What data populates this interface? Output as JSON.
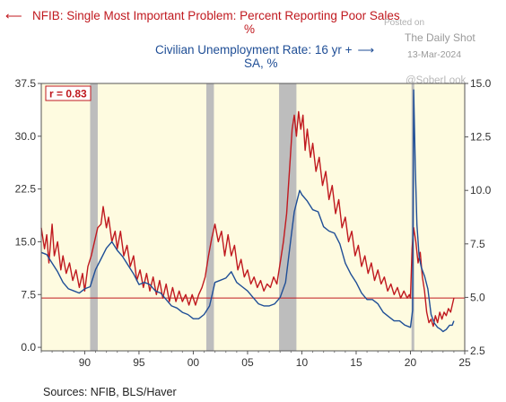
{
  "header": {
    "red_title": "NFIB: Single Most Important Problem: Percent Reporting Poor Sales",
    "red_unit": "%",
    "red_arrow": "⟵",
    "blue_title": "Civilian Unemployment Rate: 16 yr +",
    "blue_unit": "SA, %",
    "blue_arrow": "⟶"
  },
  "watermark": {
    "posted": "Posted on",
    "site": "The Daily Shot",
    "date": "13-Mar-2024",
    "handle": "@SoberLook"
  },
  "annotation": {
    "correlation": "r = 0.83"
  },
  "footer": {
    "sources": "Sources:  NFIB, BLS/Haver"
  },
  "chart_data": {
    "type": "line",
    "x_axis": {
      "range": [
        1986.0,
        2025.0
      ],
      "ticks": [
        1990,
        1995,
        2000,
        2005,
        2010,
        2015,
        2020,
        2025
      ],
      "tick_labels": [
        "90",
        "95",
        "00",
        "05",
        "10",
        "15",
        "20",
        "25"
      ]
    },
    "y_left": {
      "range": [
        -0.5,
        37.5
      ],
      "ticks": [
        0.0,
        7.5,
        15.0,
        22.5,
        30.0,
        37.5
      ],
      "tick_labels": [
        "0.0",
        "7.5",
        "15.0",
        "22.5",
        "30.0",
        "37.5"
      ]
    },
    "y_right": {
      "range": [
        2.5,
        15.0
      ],
      "ticks": [
        2.5,
        5.0,
        7.5,
        10.0,
        12.5,
        15.0
      ],
      "tick_labels": [
        "2.5",
        "5.0",
        "7.5",
        "10.0",
        "12.5",
        "15.0"
      ]
    },
    "reference_line": {
      "axis": "left",
      "value": 7.0
    },
    "recessions": [
      [
        1990.5,
        1991.2
      ],
      [
        2001.2,
        2001.9
      ],
      [
        2007.9,
        2009.5
      ],
      [
        2020.1,
        2020.35
      ]
    ],
    "colors": {
      "red": "#c0191f",
      "blue": "#1f4e96",
      "plot_bg": "#fefbe0",
      "recession": "#bdbdbd",
      "ref_line": "#c0191f"
    },
    "series": [
      {
        "name": "NFIB: Single Most Important Problem: Percent Reporting Poor Sales",
        "axis": "left",
        "color": "#c0191f",
        "points": [
          [
            1986.0,
            17.0
          ],
          [
            1986.3,
            14.0
          ],
          [
            1986.5,
            16.0
          ],
          [
            1986.7,
            12.0
          ],
          [
            1987.0,
            17.5
          ],
          [
            1987.2,
            13.0
          ],
          [
            1987.5,
            15.0
          ],
          [
            1987.8,
            11.0
          ],
          [
            1988.0,
            13.0
          ],
          [
            1988.3,
            10.5
          ],
          [
            1988.6,
            12.0
          ],
          [
            1988.9,
            9.5
          ],
          [
            1989.2,
            11.0
          ],
          [
            1989.5,
            8.5
          ],
          [
            1989.8,
            10.5
          ],
          [
            1990.0,
            8.0
          ],
          [
            1990.3,
            11.5
          ],
          [
            1990.6,
            13.0
          ],
          [
            1990.9,
            15.0
          ],
          [
            1991.2,
            17.0
          ],
          [
            1991.5,
            17.5
          ],
          [
            1991.7,
            20.0
          ],
          [
            1992.0,
            17.0
          ],
          [
            1992.2,
            18.5
          ],
          [
            1992.5,
            15.0
          ],
          [
            1992.8,
            16.5
          ],
          [
            1993.0,
            14.0
          ],
          [
            1993.3,
            16.5
          ],
          [
            1993.6,
            13.0
          ],
          [
            1993.9,
            14.5
          ],
          [
            1994.2,
            11.5
          ],
          [
            1994.5,
            13.0
          ],
          [
            1994.8,
            9.5
          ],
          [
            1995.1,
            11.0
          ],
          [
            1995.4,
            8.5
          ],
          [
            1995.7,
            10.5
          ],
          [
            1996.0,
            8.0
          ],
          [
            1996.3,
            10.0
          ],
          [
            1996.6,
            7.5
          ],
          [
            1996.9,
            9.5
          ],
          [
            1997.2,
            7.0
          ],
          [
            1997.5,
            9.0
          ],
          [
            1997.8,
            6.5
          ],
          [
            1998.1,
            8.5
          ],
          [
            1998.4,
            6.5
          ],
          [
            1998.7,
            8.0
          ],
          [
            1999.0,
            6.5
          ],
          [
            1999.3,
            7.5
          ],
          [
            1999.6,
            6.0
          ],
          [
            1999.9,
            7.5
          ],
          [
            2000.2,
            6.0
          ],
          [
            2000.5,
            7.5
          ],
          [
            2000.8,
            8.5
          ],
          [
            2001.1,
            10.0
          ],
          [
            2001.4,
            13.0
          ],
          [
            2001.7,
            15.5
          ],
          [
            2002.0,
            17.5
          ],
          [
            2002.3,
            15.0
          ],
          [
            2002.6,
            16.5
          ],
          [
            2002.9,
            13.0
          ],
          [
            2003.2,
            16.0
          ],
          [
            2003.5,
            13.0
          ],
          [
            2003.8,
            14.5
          ],
          [
            2004.1,
            11.0
          ],
          [
            2004.4,
            12.5
          ],
          [
            2004.7,
            10.0
          ],
          [
            2005.0,
            11.0
          ],
          [
            2005.3,
            9.0
          ],
          [
            2005.6,
            10.0
          ],
          [
            2005.9,
            8.5
          ],
          [
            2006.2,
            9.5
          ],
          [
            2006.5,
            8.0
          ],
          [
            2006.8,
            9.0
          ],
          [
            2007.1,
            8.5
          ],
          [
            2007.4,
            10.0
          ],
          [
            2007.7,
            9.0
          ],
          [
            2008.0,
            12.0
          ],
          [
            2008.3,
            15.0
          ],
          [
            2008.6,
            19.0
          ],
          [
            2008.9,
            26.0
          ],
          [
            2009.1,
            31.0
          ],
          [
            2009.3,
            33.0
          ],
          [
            2009.5,
            30.0
          ],
          [
            2009.7,
            33.5
          ],
          [
            2009.9,
            31.0
          ],
          [
            2010.1,
            33.0
          ],
          [
            2010.3,
            28.0
          ],
          [
            2010.5,
            31.0
          ],
          [
            2010.8,
            27.0
          ],
          [
            2011.0,
            29.0
          ],
          [
            2011.3,
            25.0
          ],
          [
            2011.6,
            27.0
          ],
          [
            2011.9,
            23.0
          ],
          [
            2012.2,
            25.0
          ],
          [
            2012.5,
            21.0
          ],
          [
            2012.8,
            23.0
          ],
          [
            2013.1,
            19.0
          ],
          [
            2013.4,
            21.0
          ],
          [
            2013.7,
            17.0
          ],
          [
            2014.0,
            18.5
          ],
          [
            2014.3,
            15.0
          ],
          [
            2014.6,
            16.5
          ],
          [
            2014.9,
            13.0
          ],
          [
            2015.2,
            14.5
          ],
          [
            2015.5,
            11.5
          ],
          [
            2015.8,
            13.0
          ],
          [
            2016.1,
            10.5
          ],
          [
            2016.4,
            12.0
          ],
          [
            2016.7,
            9.5
          ],
          [
            2017.0,
            11.0
          ],
          [
            2017.3,
            9.0
          ],
          [
            2017.6,
            10.0
          ],
          [
            2017.9,
            8.0
          ],
          [
            2018.2,
            9.0
          ],
          [
            2018.5,
            7.5
          ],
          [
            2018.8,
            8.5
          ],
          [
            2019.1,
            7.0
          ],
          [
            2019.4,
            8.0
          ],
          [
            2019.7,
            7.0
          ],
          [
            2019.9,
            7.5
          ],
          [
            2020.0,
            7.0
          ],
          [
            2020.15,
            14.0
          ],
          [
            2020.3,
            17.0
          ],
          [
            2020.5,
            15.0
          ],
          [
            2020.7,
            12.0
          ],
          [
            2020.9,
            13.5
          ],
          [
            2021.1,
            10.0
          ],
          [
            2021.3,
            8.0
          ],
          [
            2021.5,
            5.0
          ],
          [
            2021.7,
            3.5
          ],
          [
            2021.9,
            4.0
          ],
          [
            2022.1,
            3.0
          ],
          [
            2022.3,
            4.5
          ],
          [
            2022.5,
            3.5
          ],
          [
            2022.7,
            5.0
          ],
          [
            2022.9,
            4.0
          ],
          [
            2023.1,
            5.0
          ],
          [
            2023.3,
            4.5
          ],
          [
            2023.5,
            5.5
          ],
          [
            2023.7,
            5.0
          ],
          [
            2023.85,
            6.0
          ],
          [
            2024.0,
            7.0
          ]
        ]
      },
      {
        "name": "Civilian Unemployment Rate: 16 yr + SA, %",
        "axis": "right",
        "color": "#1f4e96",
        "points": [
          [
            1986.0,
            7.1
          ],
          [
            1986.5,
            7.0
          ],
          [
            1987.0,
            6.6
          ],
          [
            1987.5,
            6.2
          ],
          [
            1988.0,
            5.7
          ],
          [
            1988.5,
            5.4
          ],
          [
            1989.0,
            5.3
          ],
          [
            1989.5,
            5.2
          ],
          [
            1990.0,
            5.4
          ],
          [
            1990.5,
            5.5
          ],
          [
            1991.0,
            6.3
          ],
          [
            1991.5,
            6.8
          ],
          [
            1992.0,
            7.3
          ],
          [
            1992.5,
            7.6
          ],
          [
            1993.0,
            7.2
          ],
          [
            1993.5,
            6.9
          ],
          [
            1994.0,
            6.5
          ],
          [
            1994.5,
            6.1
          ],
          [
            1995.0,
            5.6
          ],
          [
            1995.5,
            5.7
          ],
          [
            1996.0,
            5.6
          ],
          [
            1996.5,
            5.3
          ],
          [
            1997.0,
            5.2
          ],
          [
            1997.5,
            4.9
          ],
          [
            1998.0,
            4.6
          ],
          [
            1998.5,
            4.5
          ],
          [
            1999.0,
            4.3
          ],
          [
            1999.5,
            4.2
          ],
          [
            2000.0,
            4.0
          ],
          [
            2000.5,
            4.0
          ],
          [
            2001.0,
            4.2
          ],
          [
            2001.5,
            4.6
          ],
          [
            2002.0,
            5.7
          ],
          [
            2002.5,
            5.8
          ],
          [
            2003.0,
            5.9
          ],
          [
            2003.5,
            6.2
          ],
          [
            2004.0,
            5.7
          ],
          [
            2004.5,
            5.5
          ],
          [
            2005.0,
            5.3
          ],
          [
            2005.5,
            5.0
          ],
          [
            2006.0,
            4.7
          ],
          [
            2006.5,
            4.6
          ],
          [
            2007.0,
            4.6
          ],
          [
            2007.5,
            4.7
          ],
          [
            2008.0,
            5.0
          ],
          [
            2008.5,
            5.7
          ],
          [
            2009.0,
            7.8
          ],
          [
            2009.3,
            9.0
          ],
          [
            2009.6,
            9.6
          ],
          [
            2009.8,
            10.0
          ],
          [
            2010.0,
            9.8
          ],
          [
            2010.5,
            9.5
          ],
          [
            2011.0,
            9.1
          ],
          [
            2011.5,
            9.0
          ],
          [
            2012.0,
            8.3
          ],
          [
            2012.5,
            8.1
          ],
          [
            2013.0,
            8.0
          ],
          [
            2013.5,
            7.5
          ],
          [
            2014.0,
            6.6
          ],
          [
            2014.5,
            6.1
          ],
          [
            2015.0,
            5.7
          ],
          [
            2015.5,
            5.2
          ],
          [
            2016.0,
            4.9
          ],
          [
            2016.5,
            4.9
          ],
          [
            2017.0,
            4.7
          ],
          [
            2017.5,
            4.3
          ],
          [
            2018.0,
            4.1
          ],
          [
            2018.5,
            3.9
          ],
          [
            2019.0,
            3.9
          ],
          [
            2019.5,
            3.7
          ],
          [
            2020.0,
            3.6
          ],
          [
            2020.2,
            4.4
          ],
          [
            2020.3,
            14.7
          ],
          [
            2020.45,
            11.1
          ],
          [
            2020.6,
            8.4
          ],
          [
            2020.8,
            6.9
          ],
          [
            2021.0,
            6.4
          ],
          [
            2021.3,
            6.0
          ],
          [
            2021.6,
            5.4
          ],
          [
            2021.9,
            4.2
          ],
          [
            2022.2,
            3.8
          ],
          [
            2022.5,
            3.6
          ],
          [
            2022.8,
            3.5
          ],
          [
            2023.0,
            3.4
          ],
          [
            2023.3,
            3.5
          ],
          [
            2023.6,
            3.7
          ],
          [
            2023.85,
            3.7
          ],
          [
            2024.0,
            3.9
          ]
        ]
      }
    ]
  }
}
